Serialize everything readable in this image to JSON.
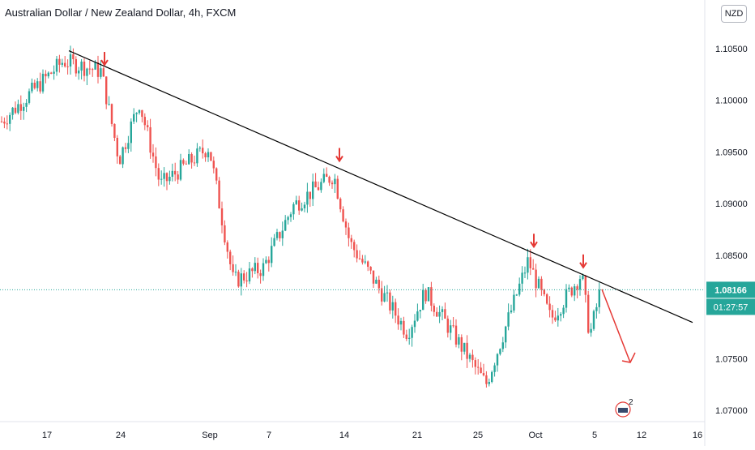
{
  "header": {
    "title": "Australian Dollar / New Zealand Dollar, 4h, FXCM",
    "currency": "NZD"
  },
  "price_tag": {
    "value": "1.08166",
    "countdown": "01:27:57"
  },
  "chart_data": {
    "type": "candlestick",
    "title": "Australian Dollar / New Zealand Dollar, 4h, FXCM",
    "x_ticks": [
      "17",
      "24",
      "Sep",
      "7",
      "14",
      "21",
      "25",
      "Oct",
      "5",
      "12",
      "16"
    ],
    "y_ticks": [
      "1.10500",
      "1.10000",
      "1.09500",
      "1.09000",
      "1.08500",
      "1.08166",
      "1.07500",
      "1.07000"
    ],
    "ylim": [
      1.0695,
      1.1085
    ],
    "last_price": 1.08166,
    "anchors": [
      {
        "label": "17",
        "price": 1.0978
      },
      {
        "label": "17",
        "price": 1.1038
      },
      {
        "label": "24",
        "price": 1.1028
      },
      {
        "label": "24",
        "price": 1.0942
      },
      {
        "label": "24",
        "price": 1.0998
      },
      {
        "label": "Sep",
        "price": 1.0918
      },
      {
        "label": "Sep",
        "price": 1.0955
      },
      {
        "label": "Sep",
        "price": 1.0825
      },
      {
        "label": "7",
        "price": 1.0838
      },
      {
        "label": "7",
        "price": 1.0898
      },
      {
        "label": "14",
        "price": 1.0928
      },
      {
        "label": "14",
        "price": 1.0862
      },
      {
        "label": "21",
        "price": 1.0775
      },
      {
        "label": "21",
        "price": 1.0815
      },
      {
        "label": "25",
        "price": 1.0725
      },
      {
        "label": "Oct",
        "price": 1.0845
      },
      {
        "label": "Oct",
        "price": 1.0788
      },
      {
        "label": "5",
        "price": 1.0832
      },
      {
        "label": "5",
        "price": 1.0772
      },
      {
        "label": "5",
        "price": 1.0818
      }
    ],
    "trendline": {
      "from": {
        "x": "17",
        "price": 1.1048
      },
      "to": {
        "x": "16",
        "price": 1.0785
      }
    },
    "touch_markers": [
      {
        "x": "24",
        "price": 1.1028
      },
      {
        "x": "14",
        "price": 1.0935
      },
      {
        "x": "Oct",
        "price": 1.0852
      },
      {
        "x": "5",
        "price": 1.0832
      }
    ],
    "projection": {
      "from": {
        "x": "5",
        "price": 1.0817
      },
      "to": {
        "x": "12",
        "price": 1.0762
      }
    },
    "colors": {
      "up": "#26a69a",
      "down": "#ef5350",
      "last_price": "#26a69a",
      "annotation": "#e53935",
      "trendline": "#000000"
    },
    "tradingview_badge_count": "2"
  }
}
